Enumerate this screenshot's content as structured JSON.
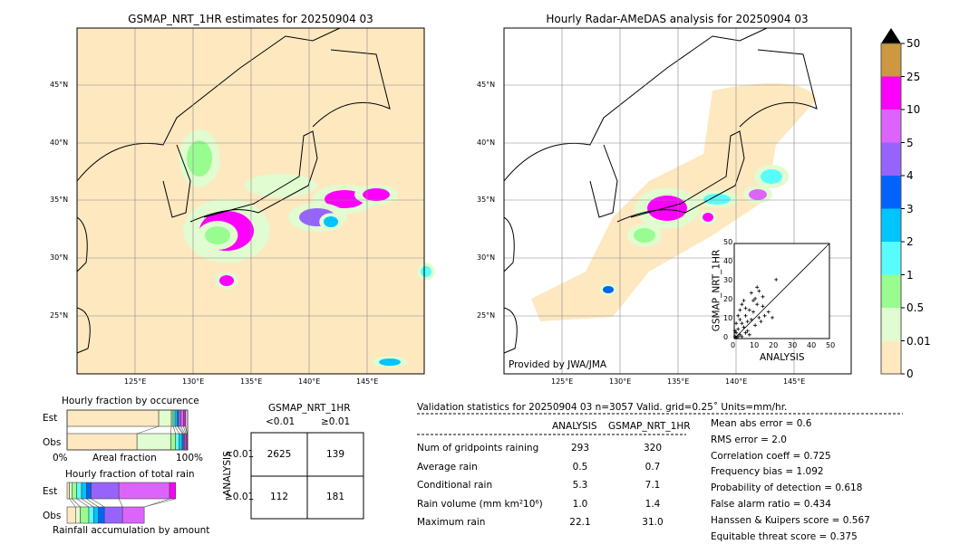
{
  "left_map": {
    "title": "GSMAP_NRT_1HR estimates for 20250904 03",
    "lon_ticks": [
      "125°E",
      "130°E",
      "135°E",
      "140°E",
      "145°E"
    ],
    "lat_ticks": [
      "45°N",
      "40°N",
      "35°N",
      "30°N",
      "25°N"
    ]
  },
  "right_map": {
    "title": "Hourly Radar-AMeDAS analysis for 20250904 03",
    "lon_ticks": [
      "125°E",
      "130°E",
      "135°E",
      "140°E",
      "145°E"
    ],
    "lat_ticks": [
      "45°N",
      "40°N",
      "35°N",
      "30°N",
      "25°N"
    ],
    "credit": "Provided by JWA/JMA"
  },
  "colorbar": {
    "labels": [
      "0",
      "0.01",
      "0.5",
      "1",
      "2",
      "3",
      "4",
      "5",
      "10",
      "25",
      "50"
    ],
    "colors": [
      "#fee8c0",
      "#e0fcd0",
      "#98fc90",
      "#58fcfc",
      "#00c4fc",
      "#0064fc",
      "#9664fc",
      "#dc64fc",
      "#fc00fc",
      "#cc9840"
    ],
    "extend_color": "#000000"
  },
  "chart_data": [
    {
      "type": "scatter",
      "xlabel": "ANALYSIS",
      "ylabel": "GSMAP_NRT_1HR",
      "xlim": [
        0,
        50
      ],
      "ylim": [
        0,
        50
      ],
      "ticks": [
        "0",
        "10",
        "20",
        "30",
        "40",
        "50"
      ],
      "points": [
        [
          0.5,
          1
        ],
        [
          1,
          3
        ],
        [
          2,
          5
        ],
        [
          3,
          2
        ],
        [
          4,
          8
        ],
        [
          5,
          6
        ],
        [
          6,
          12
        ],
        [
          7,
          4
        ],
        [
          8,
          15
        ],
        [
          9,
          10
        ],
        [
          10,
          20
        ],
        [
          11,
          7
        ],
        [
          12,
          18
        ],
        [
          13,
          25
        ],
        [
          14,
          9
        ],
        [
          15,
          22
        ],
        [
          16,
          12
        ],
        [
          18,
          14
        ],
        [
          20,
          11
        ],
        [
          22,
          31
        ],
        [
          1,
          8
        ],
        [
          2,
          12
        ],
        [
          3,
          15
        ],
        [
          4,
          18
        ],
        [
          5,
          20
        ],
        [
          6,
          3
        ],
        [
          7,
          9
        ],
        [
          8,
          2
        ],
        [
          1,
          0.5
        ],
        [
          2,
          1
        ],
        [
          0.5,
          4
        ],
        [
          3,
          10
        ],
        [
          9,
          24
        ],
        [
          10,
          14
        ],
        [
          12,
          27
        ],
        [
          13,
          11
        ],
        [
          15,
          17
        ],
        [
          11,
          21
        ],
        [
          6,
          16
        ],
        [
          4,
          1
        ]
      ]
    },
    {
      "type": "bar",
      "title": "Hourly fraction by occurence",
      "xlabel": "Areal fraction",
      "x_ticks": [
        "0%",
        "100%"
      ],
      "categories": [
        "Est",
        "Obs"
      ],
      "series_fractions": {
        "Est": [
          0.76,
          0.105,
          0.015,
          0.015,
          0.02,
          0.01,
          0.02,
          0.02,
          0.015,
          0.005
        ],
        "Obs": [
          0.58,
          0.28,
          0.04,
          0.03,
          0.025,
          0.01,
          0.01,
          0.01,
          0.01,
          0
        ]
      }
    },
    {
      "type": "bar",
      "title": "Hourly fraction of total rain",
      "xlabel": "Rainfall accumulation by amount",
      "categories": [
        "Est",
        "Obs"
      ],
      "series_fractions": {
        "Est": [
          0.02,
          0.02,
          0.04,
          0.04,
          0.04,
          0.04,
          0.23,
          0.42,
          0.05
        ],
        "Obs": [
          0.07,
          0.04,
          0.07,
          0.04,
          0.04,
          0.05,
          0.15,
          0.18,
          0
        ]
      }
    },
    {
      "type": "table",
      "title": "GSMAP_NRT_1HR",
      "col_headers": [
        "<0.01",
        "≥0.01"
      ],
      "row_label": "ANALYSIS",
      "row_headers": [
        "<0.01",
        "≥0.01"
      ],
      "cells": [
        [
          "2625",
          "139"
        ],
        [
          "112",
          "181"
        ]
      ]
    }
  ],
  "stats": {
    "header": "Validation statistics for 20250904 03  n=3057 Valid. grid=0.25˚ Units=mm/hr.",
    "col_headers": [
      "ANALYSIS",
      "GSMAP_NRT_1HR"
    ],
    "rows": [
      {
        "label": "Num of gridpoints raining",
        "a": "293",
        "g": "320"
      },
      {
        "label": "Average rain",
        "a": "0.5",
        "g": "0.7"
      },
      {
        "label": "Conditional rain",
        "a": "5.3",
        "g": "7.1"
      },
      {
        "label": "Rain volume (mm km²10⁶)",
        "a": "1.0",
        "g": "1.4"
      },
      {
        "label": "Maximum rain",
        "a": "22.1",
        "g": "31.0"
      }
    ],
    "scores": [
      "Mean abs error =    0.6",
      "RMS error =    2.0",
      "Correlation coeff =  0.725",
      "Frequency bias =  1.092",
      "Probability of detection =  0.618",
      "False alarm ratio =  0.434",
      "Hanssen & Kuipers score =  0.567",
      "Equitable threat score =  0.375"
    ]
  }
}
